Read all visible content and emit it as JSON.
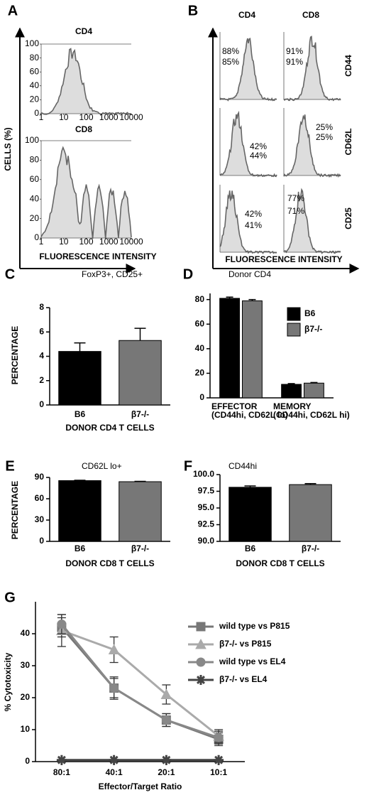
{
  "chart_data": [
    {
      "panel": "A",
      "type": "histogram",
      "ylabel": "CELLS (%)",
      "xlabel": "FLUORESCENCE INTENSITY",
      "plots": [
        {
          "title": "CD4"
        },
        {
          "title": "CD8"
        }
      ],
      "yticks": [
        0,
        20,
        40,
        60,
        80,
        100
      ],
      "xticks": [
        1,
        10,
        100,
        1000,
        10000
      ]
    },
    {
      "panel": "B",
      "type": "histogram_grid",
      "xlabel": "FLUORESCENCE INTENSITY",
      "columns": [
        "CD4",
        "CD8"
      ],
      "rows": [
        "CD44",
        "CD62L",
        "CD25"
      ],
      "percentages": [
        [
          [
            "88%",
            "85%"
          ],
          [
            "91%",
            "91%"
          ]
        ],
        [
          [
            "42%",
            "44%"
          ],
          [
            "25%",
            "25%"
          ]
        ],
        [
          [
            "42%",
            "41%"
          ],
          [
            "77%",
            "71%"
          ]
        ]
      ]
    },
    {
      "panel": "C",
      "type": "bar",
      "title": "FoxP3+, CD25+",
      "ylabel": "PERCENTAGE",
      "xlabel": "DONOR CD4  T CELLS",
      "categories": [
        "B6",
        "β7-/-"
      ],
      "values": [
        4.4,
        5.3
      ],
      "errors": [
        0.7,
        1.0
      ],
      "colors": [
        "#000000",
        "#777777"
      ],
      "ylim": [
        0,
        8
      ],
      "yticks": [
        0,
        2,
        4,
        6,
        8
      ]
    },
    {
      "panel": "D",
      "type": "grouped_bar",
      "title": "Donor CD4",
      "categories": [
        "EFFECTOR",
        "MEMORY"
      ],
      "category_notes": [
        "(CD44hi, CD62L lo)",
        "(CD44hi, CD62L hi)"
      ],
      "series": [
        {
          "name": "B6",
          "color": "#000000",
          "values": [
            81,
            11
          ],
          "errors": [
            1,
            0.6
          ]
        },
        {
          "name": "β7-/-",
          "color": "#777777",
          "values": [
            79,
            12
          ],
          "errors": [
            1,
            0.5
          ]
        }
      ],
      "ylim": [
        0,
        85
      ],
      "yticks": [
        0,
        20,
        40,
        60,
        80
      ],
      "legend": "upper right"
    },
    {
      "panel": "E",
      "type": "bar",
      "title": "CD62L lo+",
      "ylabel": "PERCENTAGE",
      "xlabel": "DONOR   CD8   T CELLS",
      "categories": [
        "B6",
        "β7-/-"
      ],
      "values": [
        85.5,
        84
      ],
      "errors": [
        0.5,
        0.5
      ],
      "colors": [
        "#000000",
        "#777777"
      ],
      "ylim": [
        0,
        90
      ],
      "yticks": [
        0,
        30,
        60,
        90
      ]
    },
    {
      "panel": "F",
      "type": "bar",
      "title": "CD44hi",
      "xlabel": "DONOR   CD8   T CELLS",
      "categories": [
        "B6",
        "β7-/-"
      ],
      "values": [
        98.1,
        98.5
      ],
      "errors": [
        0.2,
        0.15
      ],
      "colors": [
        "#000000",
        "#777777"
      ],
      "ylim": [
        90,
        100
      ],
      "yticks": [
        {
          "value": 90,
          "label": "90.0"
        },
        {
          "value": 92.5,
          "label": "92.5"
        },
        {
          "value": 95,
          "label": "95.0"
        },
        {
          "value": 97.5,
          "label": "97.5"
        },
        {
          "value": 100,
          "label": "100.0"
        }
      ]
    },
    {
      "panel": "G",
      "type": "line",
      "ylabel": "% Cytotoxicity",
      "xlabel": "Effector/Target Ratio",
      "categories": [
        "80:1",
        "40:1",
        "20:1",
        "10:1"
      ],
      "series": [
        {
          "name": "wild type vs P815",
          "color": "#777777",
          "marker": "square",
          "values": [
            42,
            23,
            13,
            7
          ],
          "errors": [
            3,
            3.5,
            2,
            2
          ]
        },
        {
          "name": "β7-/- vs P815",
          "color": "#aaaaaa",
          "marker": "triangle",
          "values": [
            41,
            35,
            21,
            8
          ],
          "errors": [
            5,
            4,
            3,
            2
          ]
        },
        {
          "name": "wild type vs EL4",
          "color": "#888888",
          "marker": "circle",
          "values": [
            43,
            23,
            13,
            7.5
          ],
          "errors": [
            3,
            3,
            2,
            2
          ]
        },
        {
          "name": "β7-/- vs EL4",
          "color": "#444444",
          "marker": "star",
          "values": [
            0.5,
            0.5,
            0.5,
            0.5
          ]
        }
      ],
      "ylim": [
        0,
        50
      ],
      "yticks": [
        0,
        10,
        20,
        30,
        40
      ],
      "legend": "upper right"
    }
  ]
}
